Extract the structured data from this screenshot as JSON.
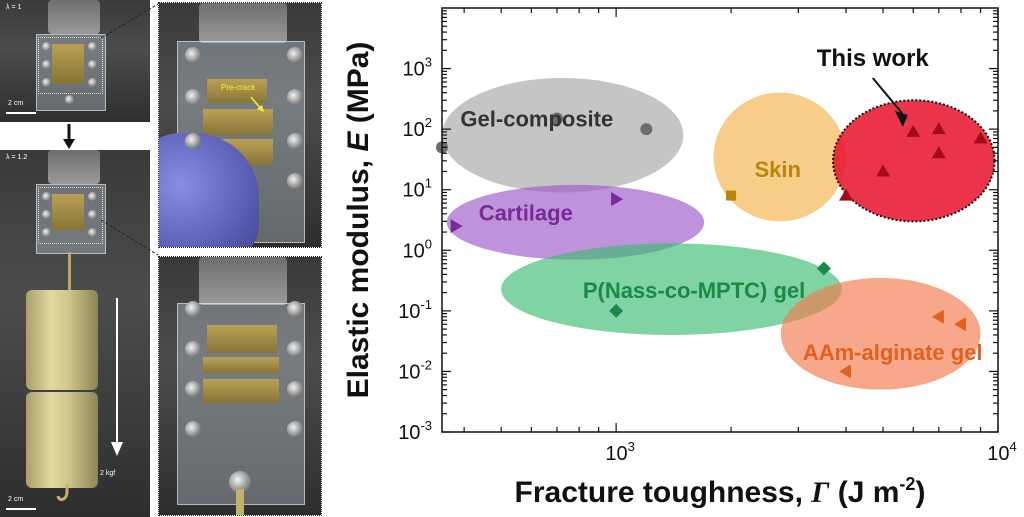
{
  "photos": {
    "lambda1": "λ = 1",
    "lambda2": "λ = 1.2",
    "scale1": "2 cm",
    "scale2": "2 cm",
    "precrack": "Pre-crack",
    "weight": "2 kgf"
  },
  "chart_data": {
    "type": "scatter",
    "xlabel_main": "Fracture toughness, ",
    "xlabel_sym": "Γ",
    "xlabel_unit_pre": " (J m",
    "xlabel_unit_exp": "-2",
    "xlabel_unit_post": ")",
    "ylabel_main": "Elastic modulus, ",
    "ylabel_sym": "E",
    "ylabel_unit": " (MPa)",
    "x_scale": "log",
    "y_scale": "log",
    "xlim": [
      350,
      10000
    ],
    "ylim": [
      0.001,
      10000
    ],
    "x_ticks": [
      {
        "value": 1000,
        "base": "10",
        "exp": "3"
      },
      {
        "value": 10000,
        "base": "10",
        "exp": "4"
      }
    ],
    "y_ticks": [
      {
        "value": 0.001,
        "base": "10",
        "exp": "-3"
      },
      {
        "value": 0.01,
        "base": "10",
        "exp": "-2"
      },
      {
        "value": 0.1,
        "base": "10",
        "exp": "-1"
      },
      {
        "value": 1,
        "base": "10",
        "exp": "0"
      },
      {
        "value": 10,
        "base": "10",
        "exp": "1"
      },
      {
        "value": 100,
        "base": "10",
        "exp": "2"
      },
      {
        "value": 1000,
        "base": "10",
        "exp": "3"
      }
    ],
    "annotation": "This work",
    "series": [
      {
        "name": "Gel-composite",
        "color": "#a6a6a6",
        "point_color": "#6d6d6d",
        "marker": "circle",
        "region": {
          "x": [
            350,
            1500
          ],
          "y": [
            9,
            700
          ]
        },
        "points": [
          [
            350,
            50
          ],
          [
            700,
            150
          ],
          [
            1200,
            100
          ]
        ]
      },
      {
        "name": "Cartilage",
        "color": "#9b59c9",
        "point_color": "#7a2a96",
        "marker": "triangle-right",
        "region": {
          "x": [
            360,
            1700
          ],
          "y": [
            0.7,
            12
          ]
        },
        "points": [
          [
            380,
            2.5
          ],
          [
            1000,
            7
          ]
        ]
      },
      {
        "name": "Skin",
        "color": "#f5b14a",
        "point_color": "#b8860b",
        "marker": "square",
        "region": {
          "x": [
            1800,
            4000
          ],
          "y": [
            3,
            400
          ]
        },
        "points": [
          [
            2000,
            8
          ]
        ]
      },
      {
        "name": "P(Nass-co-MPTC) gel",
        "color": "#3cbc72",
        "point_color": "#1a8a45",
        "marker": "diamond",
        "region": {
          "x": [
            500,
            3900
          ],
          "y": [
            0.04,
            1.3
          ]
        },
        "points": [
          [
            1000,
            0.1
          ],
          [
            3500,
            0.5
          ]
        ]
      },
      {
        "name": "AAm-alginate gel",
        "color": "#f47a4c",
        "point_color": "#e06020",
        "marker": "triangle-left",
        "region": {
          "x": [
            2700,
            9000
          ],
          "y": [
            0.005,
            0.35
          ]
        },
        "points": [
          [
            4000,
            0.01
          ],
          [
            7000,
            0.08
          ],
          [
            8000,
            0.06
          ]
        ]
      },
      {
        "name": "This work",
        "color": "#e8112a",
        "point_color": "#a00d18",
        "marker": "triangle-up",
        "region": {
          "x": [
            3700,
            9800
          ],
          "y": [
            3,
            300
          ]
        },
        "points": [
          [
            4000,
            8
          ],
          [
            5000,
            20
          ],
          [
            6000,
            90
          ],
          [
            7000,
            40
          ],
          [
            7000,
            100
          ],
          [
            9000,
            70
          ]
        ]
      }
    ]
  }
}
